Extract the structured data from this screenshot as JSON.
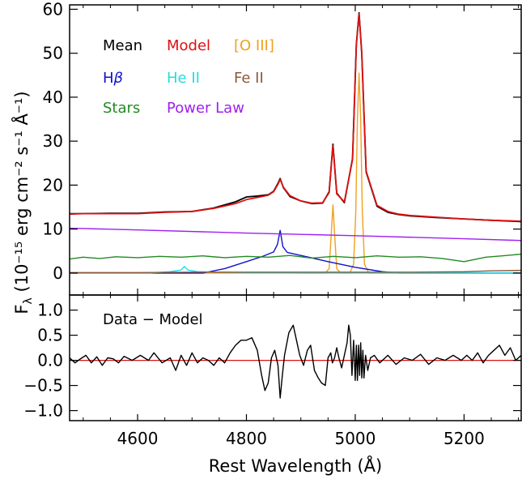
{
  "chart_data": [
    {
      "type": "line",
      "panel": "top",
      "xlim": [
        4475,
        5305
      ],
      "ylim": [
        -5,
        61
      ],
      "x_ticks": [
        4600,
        4800,
        5000,
        5200
      ],
      "y_ticks": [
        0,
        10,
        20,
        30,
        40,
        50,
        60
      ],
      "y_tick_labels": [
        "0",
        "10",
        "20",
        "30",
        "40",
        "50",
        "60"
      ],
      "ylabel": "F",
      "ylabel_sub": "λ",
      "ylabel_units": "(10⁻¹⁵ erg cm⁻² s⁻¹ Å⁻¹)",
      "legend": [
        {
          "label": "Mean",
          "color": "#000000"
        },
        {
          "label": "Model",
          "color": "#dd1111"
        },
        {
          "label": "[O III]",
          "color": "#f0a020"
        },
        {
          "label": "H",
          "label_greek": "β",
          "color": "#1111cc"
        },
        {
          "label": "He II",
          "color": "#22dddd"
        },
        {
          "label": "Fe II",
          "color": "#8b5a3c"
        },
        {
          "label": "Stars",
          "color": "#228b22"
        },
        {
          "label": "Power Law",
          "color": "#a020f0"
        }
      ],
      "series": [
        {
          "name": "Mean",
          "color": "#000000",
          "x": [
            4475,
            4500,
            4550,
            4600,
            4650,
            4700,
            4740,
            4780,
            4800,
            4820,
            4840,
            4850,
            4858,
            4862,
            4868,
            4880,
            4900,
            4920,
            4940,
            4952,
            4959,
            4966,
            4980,
            4995,
            5002,
            5007,
            5012,
            5020,
            5040,
            5060,
            5080,
            5100,
            5150,
            5200,
            5250,
            5305
          ],
          "y": [
            13.5,
            13.5,
            13.6,
            13.6,
            13.9,
            14.0,
            14.8,
            16.2,
            17.3,
            17.5,
            17.8,
            18.6,
            20.4,
            21.5,
            19.4,
            17.4,
            16.4,
            15.8,
            15.9,
            18.5,
            29.3,
            18.2,
            16.0,
            26.0,
            52.0,
            59.2,
            50.0,
            23.0,
            15.2,
            13.8,
            13.3,
            13.0,
            12.6,
            12.3,
            12.0,
            11.7
          ]
        },
        {
          "name": "Model",
          "color": "#dd1111",
          "x": [
            4475,
            4500,
            4550,
            4600,
            4650,
            4700,
            4740,
            4780,
            4800,
            4820,
            4840,
            4850,
            4858,
            4862,
            4868,
            4880,
            4900,
            4920,
            4940,
            4952,
            4959,
            4966,
            4980,
            4995,
            5002,
            5007,
            5012,
            5020,
            5040,
            5060,
            5080,
            5100,
            5150,
            5200,
            5250,
            5305
          ],
          "y": [
            13.4,
            13.5,
            13.5,
            13.5,
            13.8,
            14.0,
            14.7,
            15.8,
            16.7,
            17.2,
            17.7,
            18.5,
            20.2,
            21.3,
            19.5,
            17.6,
            16.4,
            15.9,
            16.0,
            18.3,
            29.0,
            18.0,
            16.2,
            25.8,
            51.8,
            59.0,
            49.8,
            23.2,
            15.4,
            14.0,
            13.4,
            13.1,
            12.7,
            12.3,
            12.0,
            11.8
          ]
        },
        {
          "name": "[O III]",
          "color": "#f0a020",
          "x": [
            4475,
            4945,
            4952,
            4956,
            4959,
            4962,
            4966,
            4973,
            4990,
            4997,
            5001,
            5004,
            5007,
            5010,
            5013,
            5017,
            5025,
            5305
          ],
          "y": [
            0,
            0,
            1.0,
            9.0,
            15.5,
            9.0,
            1.0,
            0,
            0,
            2.0,
            14.0,
            35.0,
            45.5,
            35.0,
            14.0,
            2.0,
            0,
            0
          ]
        },
        {
          "name": "Hβ",
          "color": "#1111cc",
          "x": [
            4475,
            4720,
            4760,
            4800,
            4830,
            4850,
            4857,
            4862,
            4867,
            4875,
            4900,
            4950,
            5000,
            5050,
            5080,
            5305
          ],
          "y": [
            0,
            0,
            1.0,
            2.6,
            3.8,
            4.8,
            6.5,
            9.7,
            6.0,
            4.7,
            4.0,
            2.6,
            1.3,
            0.3,
            0,
            0
          ]
        },
        {
          "name": "He II",
          "color": "#22dddd",
          "x": [
            4475,
            4620,
            4660,
            4680,
            4686,
            4692,
            4710,
            4750,
            4800,
            4900,
            5000,
            5100,
            5305
          ],
          "y": [
            0,
            0,
            0.3,
            0.7,
            1.5,
            0.7,
            0.3,
            0.2,
            0.1,
            0,
            0,
            0,
            0
          ]
        },
        {
          "name": "Fe II",
          "color": "#8b5a3c",
          "x": [
            4475,
            4600,
            4700,
            4800,
            4900,
            5000,
            5100,
            5200,
            5250,
            5305
          ],
          "y": [
            0.1,
            0.1,
            0.2,
            0.2,
            0.2,
            0.2,
            0.2,
            0.3,
            0.5,
            0.6
          ]
        },
        {
          "name": "Stars",
          "color": "#228b22",
          "x": [
            4475,
            4500,
            4530,
            4560,
            4600,
            4640,
            4680,
            4720,
            4760,
            4800,
            4840,
            4880,
            4920,
            4960,
            5000,
            5040,
            5080,
            5120,
            5160,
            5200,
            5240,
            5270,
            5305
          ],
          "y": [
            3.2,
            3.6,
            3.3,
            3.7,
            3.5,
            3.8,
            3.6,
            3.9,
            3.5,
            3.8,
            3.6,
            4.0,
            3.4,
            3.8,
            3.5,
            3.9,
            3.6,
            3.7,
            3.3,
            2.6,
            3.6,
            3.9,
            4.3
          ]
        },
        {
          "name": "Power Law",
          "color": "#a020f0",
          "x": [
            4475,
            4600,
            4800,
            5000,
            5200,
            5305
          ],
          "y": [
            10.2,
            9.8,
            9.1,
            8.5,
            7.8,
            7.4
          ]
        }
      ]
    },
    {
      "type": "line",
      "panel": "bottom",
      "xlim": [
        4475,
        5305
      ],
      "ylim": [
        -1.2,
        1.3
      ],
      "x_ticks": [
        4600,
        4800,
        5000,
        5200
      ],
      "y_ticks": [
        -1.0,
        -0.5,
        0.0,
        0.5,
        1.0
      ],
      "y_tick_labels": [
        "−1.0",
        "−0.5",
        "0.0",
        "0.5",
        "1.0"
      ],
      "xlabel": "Rest Wavelength (Å)",
      "annotation": "Data − Model",
      "zero_line_color": "#dd1111",
      "series": [
        {
          "name": "Data − Model",
          "color": "#000000",
          "x": [
            4475,
            4485,
            4495,
            4505,
            4515,
            4525,
            4535,
            4545,
            4555,
            4565,
            4575,
            4590,
            4605,
            4620,
            4630,
            4645,
            4660,
            4670,
            4680,
            4690,
            4700,
            4710,
            4720,
            4730,
            4740,
            4750,
            4760,
            4770,
            4780,
            4790,
            4800,
            4810,
            4820,
            4828,
            4834,
            4840,
            4846,
            4852,
            4858,
            4862,
            4866,
            4870,
            4878,
            4886,
            4892,
            4898,
            4905,
            4912,
            4918,
            4925,
            4932,
            4938,
            4945,
            4950,
            4955,
            4958,
            4962,
            4966,
            4970,
            4975,
            4980,
            4985,
            4988,
            4991,
            4994,
            4997,
            5000,
            5002,
            5004,
            5006,
            5008,
            5010,
            5012,
            5014,
            5016,
            5019,
            5023,
            5028,
            5035,
            5045,
            5060,
            5075,
            5090,
            5105,
            5120,
            5135,
            5150,
            5165,
            5180,
            5195,
            5205,
            5215,
            5225,
            5235,
            5245,
            5255,
            5265,
            5275,
            5285,
            5295,
            5305
          ],
          "y": [
            0.05,
            -0.05,
            0.03,
            0.1,
            -0.05,
            0.07,
            -0.1,
            0.05,
            0.03,
            -0.05,
            0.08,
            0.0,
            0.1,
            0.0,
            0.15,
            -0.05,
            0.05,
            -0.2,
            0.1,
            -0.1,
            0.15,
            -0.05,
            0.05,
            0.0,
            -0.1,
            0.05,
            -0.05,
            0.15,
            0.3,
            0.4,
            0.4,
            0.45,
            0.2,
            -0.3,
            -0.6,
            -0.45,
            0.05,
            0.2,
            -0.1,
            -0.75,
            -0.3,
            0.1,
            0.55,
            0.7,
            0.4,
            0.1,
            -0.1,
            0.2,
            0.3,
            -0.2,
            -0.35,
            -0.45,
            -0.5,
            0.05,
            0.15,
            -0.05,
            0.05,
            0.25,
            0.05,
            -0.15,
            0.1,
            0.35,
            0.7,
            0.5,
            -0.3,
            0.4,
            -0.4,
            0.3,
            -0.4,
            0.3,
            -0.3,
            0.35,
            -0.35,
            0.2,
            -0.35,
            0.1,
            -0.2,
            0.05,
            0.1,
            -0.05,
            0.1,
            -0.08,
            0.05,
            0.0,
            0.12,
            -0.08,
            0.05,
            0.0,
            0.1,
            0.0,
            0.1,
            0.0,
            0.15,
            -0.05,
            0.1,
            0.2,
            0.3,
            0.1,
            0.25,
            0.0,
            0.1
          ]
        }
      ]
    }
  ]
}
